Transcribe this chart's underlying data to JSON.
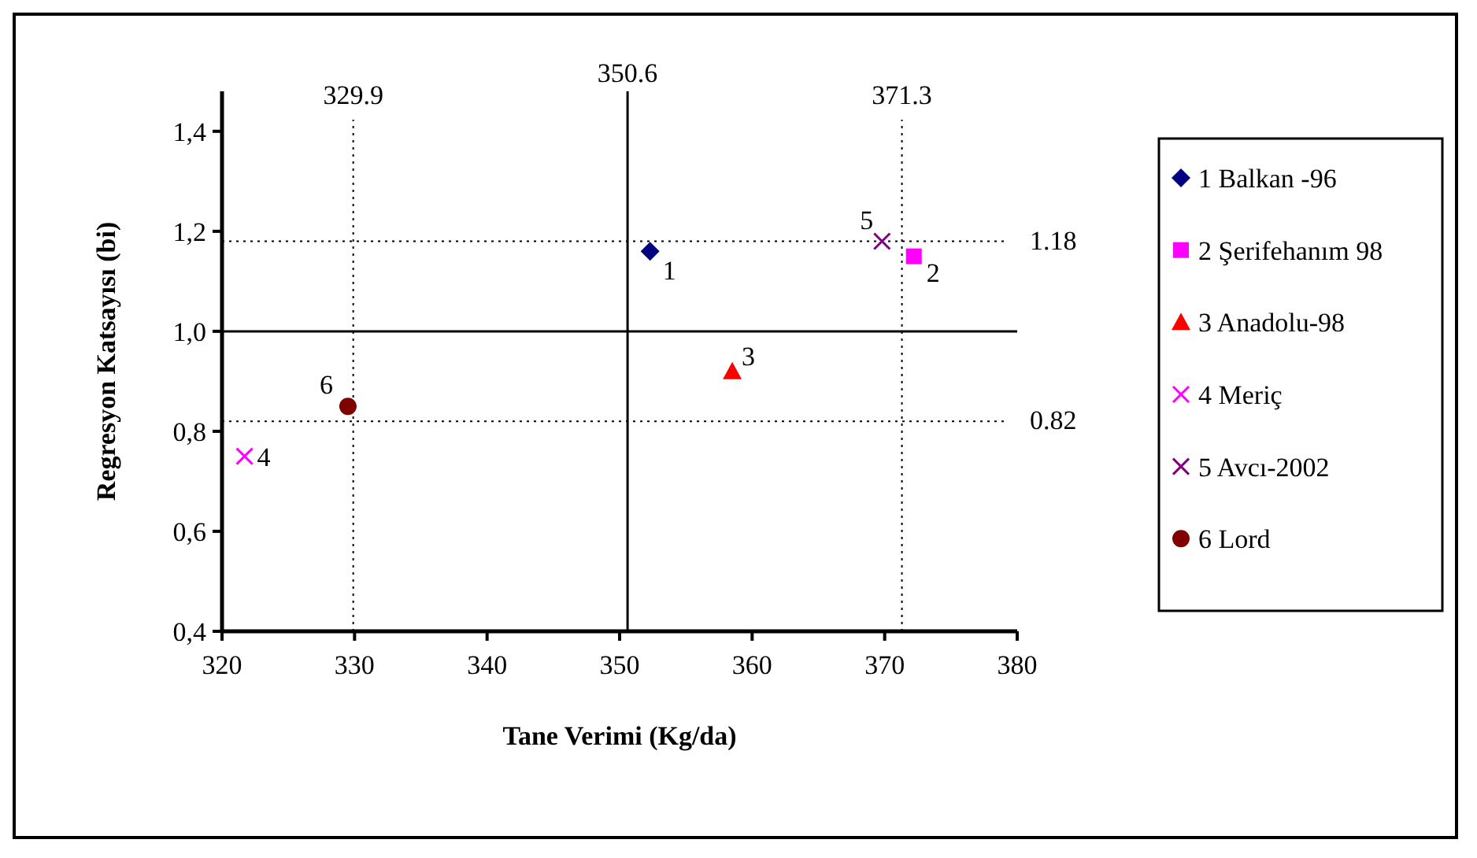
{
  "chart_data": {
    "type": "scatter",
    "xlabel": "Tane Verimi (Kg/da)",
    "ylabel": "Regresyon Katsayısı (bi)",
    "xlim": [
      320,
      380
    ],
    "xticks": [
      320,
      330,
      340,
      350,
      360,
      370,
      380
    ],
    "ylim": [
      0.4,
      1.48
    ],
    "yticks": [
      {
        "value": 0.4,
        "label": "0,4"
      },
      {
        "value": 0.6,
        "label": "0,6"
      },
      {
        "value": 0.8,
        "label": "0,8"
      },
      {
        "value": 1.0,
        "label": "1,0"
      },
      {
        "value": 1.2,
        "label": "1,2"
      },
      {
        "value": 1.4,
        "label": "1,4"
      }
    ],
    "legend": "right",
    "grid": false,
    "series": [
      {
        "name": "1 Balkan -96",
        "color": "#000080",
        "marker": "diamond",
        "x": [
          352.3
        ],
        "values": [
          1.16
        ]
      },
      {
        "name": "2 Şerifehanım 98",
        "color": "#ff00ff",
        "marker": "square",
        "x": [
          372.2
        ],
        "values": [
          1.15
        ]
      },
      {
        "name": "3 Anadolu-98",
        "color": "#ff0000",
        "marker": "triangle",
        "x": [
          358.5
        ],
        "values": [
          0.92
        ]
      },
      {
        "name": "4 Meriç",
        "color": "#ff00ff",
        "marker": "cross",
        "x": [
          321.7
        ],
        "values": [
          0.75
        ]
      },
      {
        "name": "5 Avcı-2002",
        "color": "#800080",
        "marker": "cross",
        "x": [
          369.8
        ],
        "values": [
          1.18
        ]
      },
      {
        "name": "6 Lord",
        "color": "#800000",
        "marker": "circle",
        "x": [
          329.5
        ],
        "values": [
          0.85
        ]
      }
    ],
    "annotations": [
      {
        "text": "1",
        "x": 352.3,
        "y": 1.16
      },
      {
        "text": "2",
        "x": 372.2,
        "y": 1.15
      },
      {
        "text": "3",
        "x": 358.5,
        "y": 0.92
      },
      {
        "text": "4",
        "x": 321.7,
        "y": 0.75
      },
      {
        "text": "5",
        "x": 369.8,
        "y": 1.18
      },
      {
        "text": "6",
        "x": 329.5,
        "y": 0.85
      }
    ],
    "ref_lines": [
      {
        "axis": "x",
        "value": 329.9,
        "label": "329.9",
        "line_style": "dotted"
      },
      {
        "axis": "x",
        "value": 350.6,
        "label": "350.6",
        "line_style": "solid"
      },
      {
        "axis": "x",
        "value": 371.3,
        "label": "371.3",
        "line_style": "dotted"
      },
      {
        "axis": "y",
        "value": 1.18,
        "label": "1.18",
        "line_style": "dotted"
      },
      {
        "axis": "y",
        "value": 0.82,
        "label": "0.82",
        "line_style": "dotted"
      },
      {
        "axis": "y",
        "value": 1.0,
        "label": null,
        "line_style": "solid"
      }
    ]
  }
}
